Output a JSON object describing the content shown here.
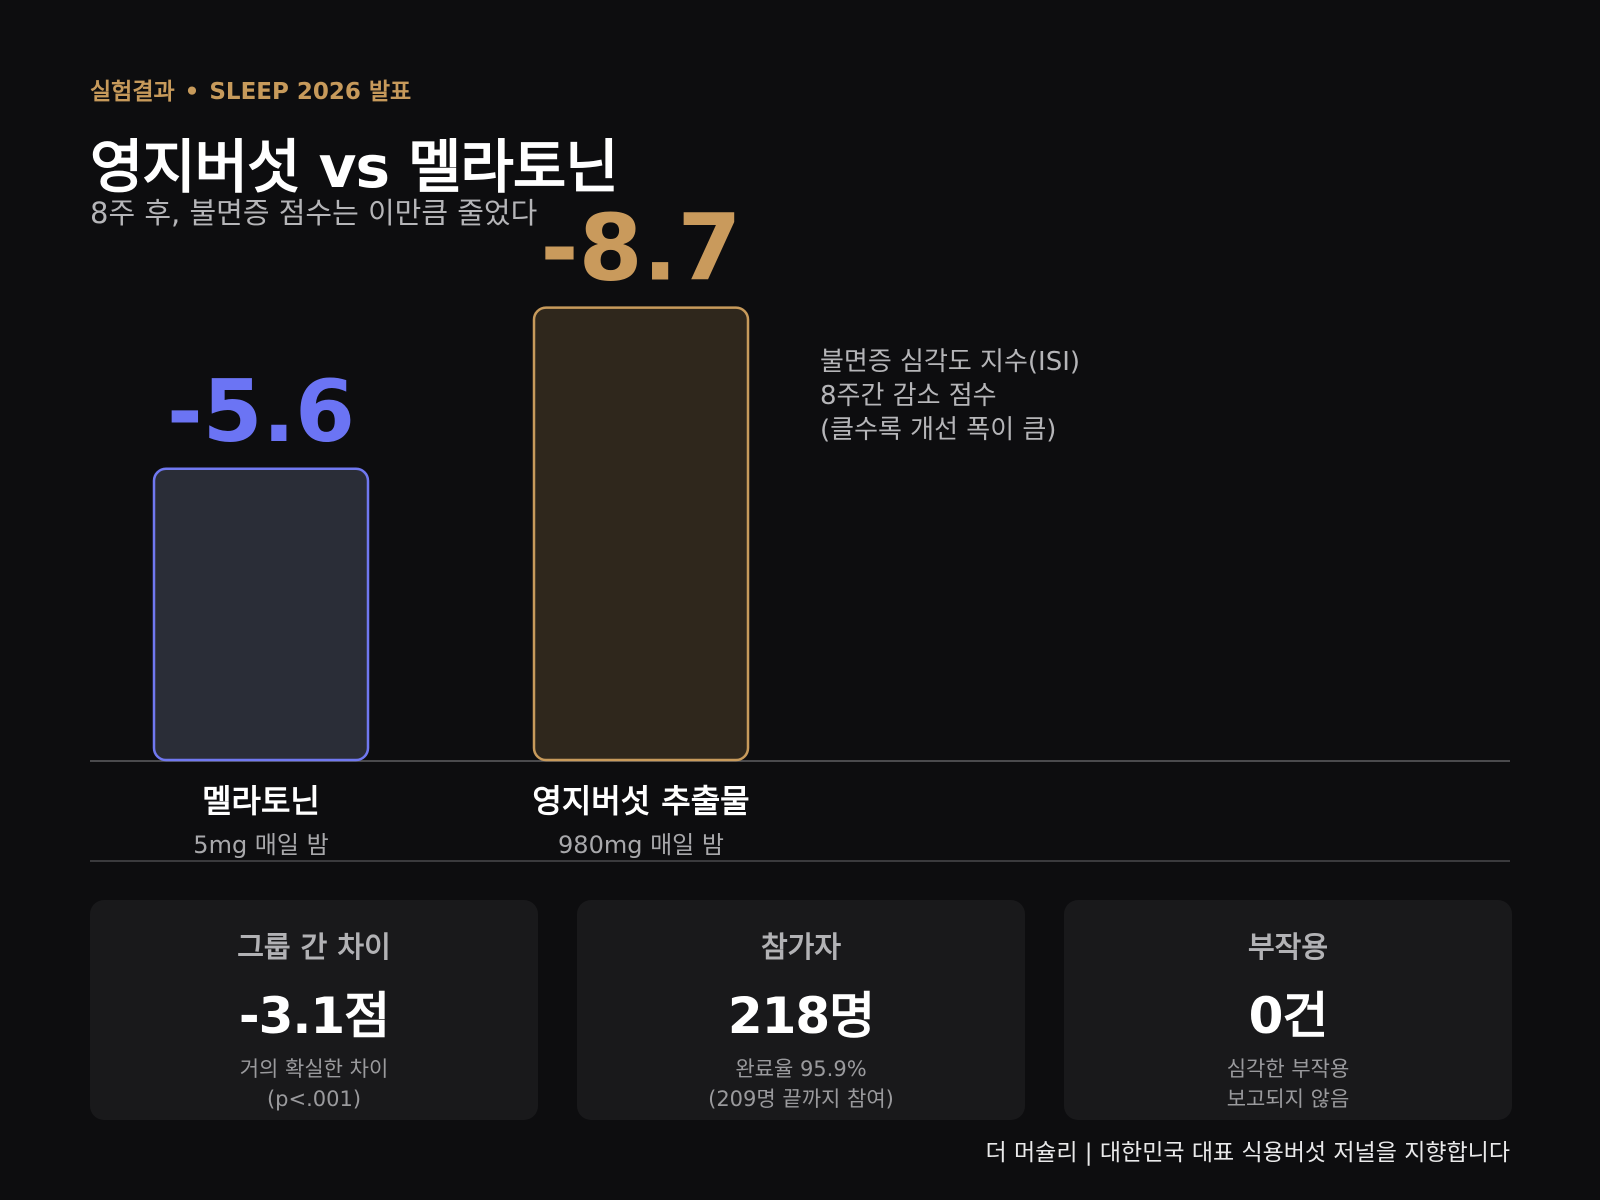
{
  "header": {
    "kicker_left": "실험결과",
    "kicker_dot": "•",
    "kicker_right": "SLEEP 2026 발표",
    "title": "영지버섯 vs 멜라토닌",
    "subtitle": "8주 후, 불면증 점수는 이만큼 줄었다"
  },
  "chart_data": {
    "type": "bar",
    "title": "영지버섯 vs 멜라토닌",
    "subtitle": "8주 후, 불면증 점수는 이만큼 줄었다",
    "categories": [
      "멜라토닌",
      "영지버섯 추출물"
    ],
    "category_sublabels": [
      "5mg 매일 밤",
      "980mg 매일 밤"
    ],
    "values": [
      -5.6,
      -8.7
    ],
    "value_labels": [
      "-5.6",
      "-8.7"
    ],
    "colors": {
      "멜라토닌": {
        "stroke": "#7078f0",
        "fill": "#2a2d37",
        "label": "#6b74f4"
      },
      "영지버섯 추출물": {
        "stroke": "#c79a5b",
        "fill": "#2f271c",
        "label": "#c99a5c"
      }
    },
    "annotation": [
      "불면증 심각도 지수(ISI)",
      "8주간 감소 점수",
      "(클수록 개선 폭이 큼)"
    ],
    "bars_show_magnitude": true,
    "grid": false,
    "legend": "none"
  },
  "stats": [
    {
      "label": "그룹 간 차이",
      "value": "-3.1점",
      "note_line1": "거의 확실한 차이",
      "note_line2": "(p<.001)"
    },
    {
      "label": "참가자",
      "value": "218명",
      "note_line1": "완료율 95.9%",
      "note_line2": "(209명 끝까지 참여)"
    },
    {
      "label": "부작용",
      "value": "0건",
      "note_line1": "심각한 부작용",
      "note_line2": "보고되지 않음"
    }
  ],
  "footer": "더 머슐리 | 대한민국 대표 식용버섯 저널을 지향합니다"
}
